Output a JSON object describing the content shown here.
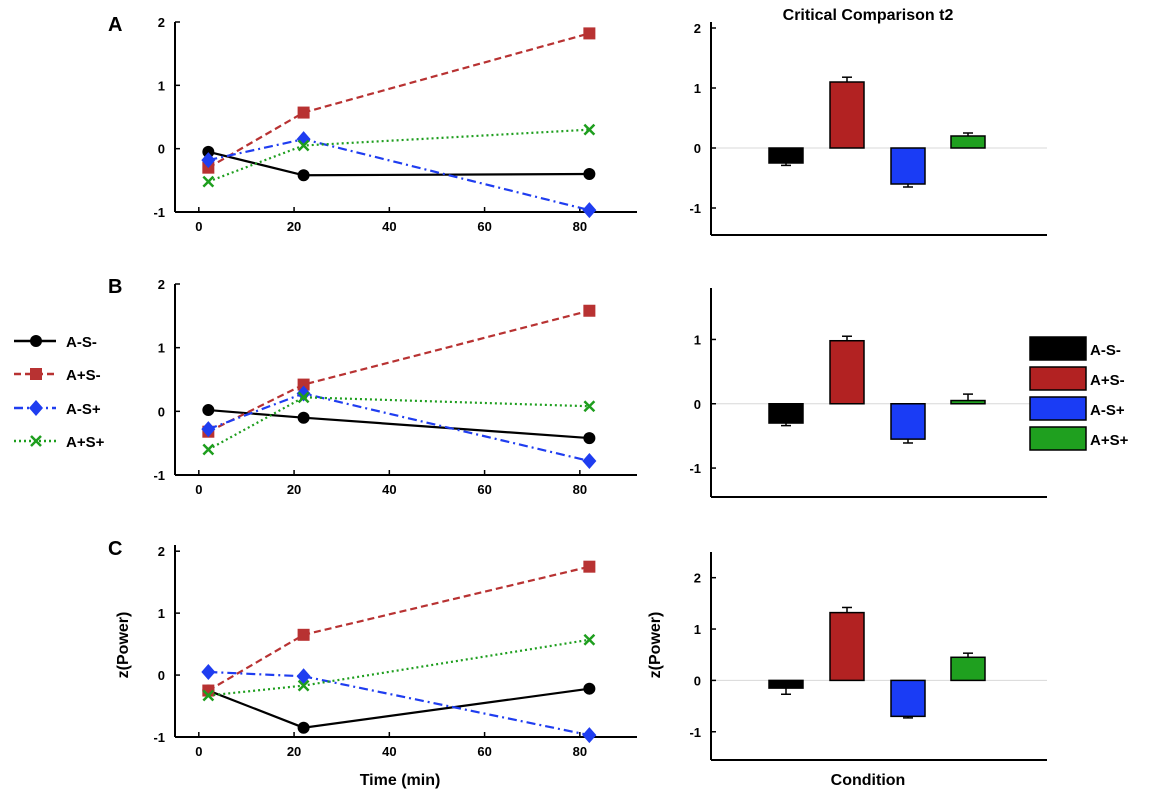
{
  "figure": {
    "panel_letters": [
      "A",
      "B",
      "C"
    ],
    "right_title": "Critical Comparison t2",
    "line_xlabel": "Time (min)",
    "bar_xlabel": "Condition",
    "ylabel": "z(Power)"
  },
  "legend": {
    "line_entries": [
      "A-S-",
      "A+S-",
      "A-S+",
      "A+S+"
    ],
    "bar_entries": [
      "A-S-",
      "A+S-",
      "A-S+",
      "A+S+"
    ]
  },
  "styles": {
    "series_colors": [
      "#000000",
      "#b83232",
      "#1f3df0",
      "#1e9e1e"
    ],
    "bar_colors": [
      "#000000",
      "#b22222",
      "#1a3cf5",
      "#1fa01f"
    ]
  },
  "chart_data": [
    {
      "type": "line",
      "panel": "A",
      "x": [
        2,
        22,
        82
      ],
      "xticks": [
        0,
        20,
        40,
        60,
        80
      ],
      "yticks": [
        -1,
        0,
        1,
        2
      ],
      "xlim": [
        -5,
        92
      ],
      "ylim": [
        -1,
        2
      ],
      "series": [
        {
          "name": "A-S-",
          "values": [
            -0.05,
            -0.42,
            -0.4
          ]
        },
        {
          "name": "A+S-",
          "values": [
            -0.3,
            0.57,
            1.82
          ]
        },
        {
          "name": "A-S+",
          "values": [
            -0.18,
            0.15,
            -0.97
          ]
        },
        {
          "name": "A+S+",
          "values": [
            -0.52,
            0.05,
            0.3
          ]
        }
      ]
    },
    {
      "type": "bar",
      "panel": "A",
      "title": "Critical Comparison t2",
      "categories": [
        "A-S-",
        "A+S-",
        "A-S+",
        "A+S+"
      ],
      "values": [
        -0.25,
        1.1,
        -0.6,
        0.2
      ],
      "errors": [
        0.04,
        0.08,
        0.05,
        0.05
      ],
      "yticks": [
        -1,
        0,
        1,
        2
      ],
      "ylim": [
        -1.45,
        2.1
      ]
    },
    {
      "type": "line",
      "panel": "B",
      "x": [
        2,
        22,
        82
      ],
      "xticks": [
        0,
        20,
        40,
        60,
        80
      ],
      "yticks": [
        -1,
        0,
        1,
        2
      ],
      "xlim": [
        -5,
        92
      ],
      "ylim": [
        -1,
        2
      ],
      "series": [
        {
          "name": "A-S-",
          "values": [
            0.02,
            -0.1,
            -0.42
          ]
        },
        {
          "name": "A+S-",
          "values": [
            -0.32,
            0.42,
            1.58
          ]
        },
        {
          "name": "A-S+",
          "values": [
            -0.28,
            0.28,
            -0.78
          ]
        },
        {
          "name": "A+S+",
          "values": [
            -0.6,
            0.22,
            0.08
          ]
        }
      ]
    },
    {
      "type": "bar",
      "panel": "B",
      "title": "",
      "categories": [
        "A-S-",
        "A+S-",
        "A-S+",
        "A+S+"
      ],
      "values": [
        -0.3,
        0.98,
        -0.55,
        0.05
      ],
      "errors": [
        0.04,
        0.07,
        0.06,
        0.1
      ],
      "yticks": [
        -1,
        0,
        1
      ],
      "ylim": [
        -1.45,
        1.8
      ]
    },
    {
      "type": "line",
      "panel": "C",
      "ylabel": "z(Power)",
      "xlabel": "Time (min)",
      "x": [
        2,
        22,
        82
      ],
      "xticks": [
        0,
        20,
        40,
        60,
        80
      ],
      "yticks": [
        -1,
        0,
        1,
        2
      ],
      "xlim": [
        -5,
        92
      ],
      "ylim": [
        -1,
        2.1
      ],
      "series": [
        {
          "name": "A-S-",
          "values": [
            -0.25,
            -0.85,
            -0.22
          ]
        },
        {
          "name": "A+S-",
          "values": [
            -0.25,
            0.65,
            1.75
          ]
        },
        {
          "name": "A-S+",
          "values": [
            0.05,
            -0.02,
            -0.97
          ]
        },
        {
          "name": "A+S+",
          "values": [
            -0.33,
            -0.17,
            0.57
          ]
        }
      ]
    },
    {
      "type": "bar",
      "panel": "C",
      "ylabel": "z(Power)",
      "xlabel": "Condition",
      "categories": [
        "A-S-",
        "A+S-",
        "A-S+",
        "A+S+"
      ],
      "values": [
        -0.15,
        1.32,
        -0.7,
        0.45
      ],
      "errors": [
        0.12,
        0.1,
        0.03,
        0.08
      ],
      "yticks": [
        -1,
        0,
        1,
        2
      ],
      "ylim": [
        -1.55,
        2.5
      ]
    }
  ]
}
